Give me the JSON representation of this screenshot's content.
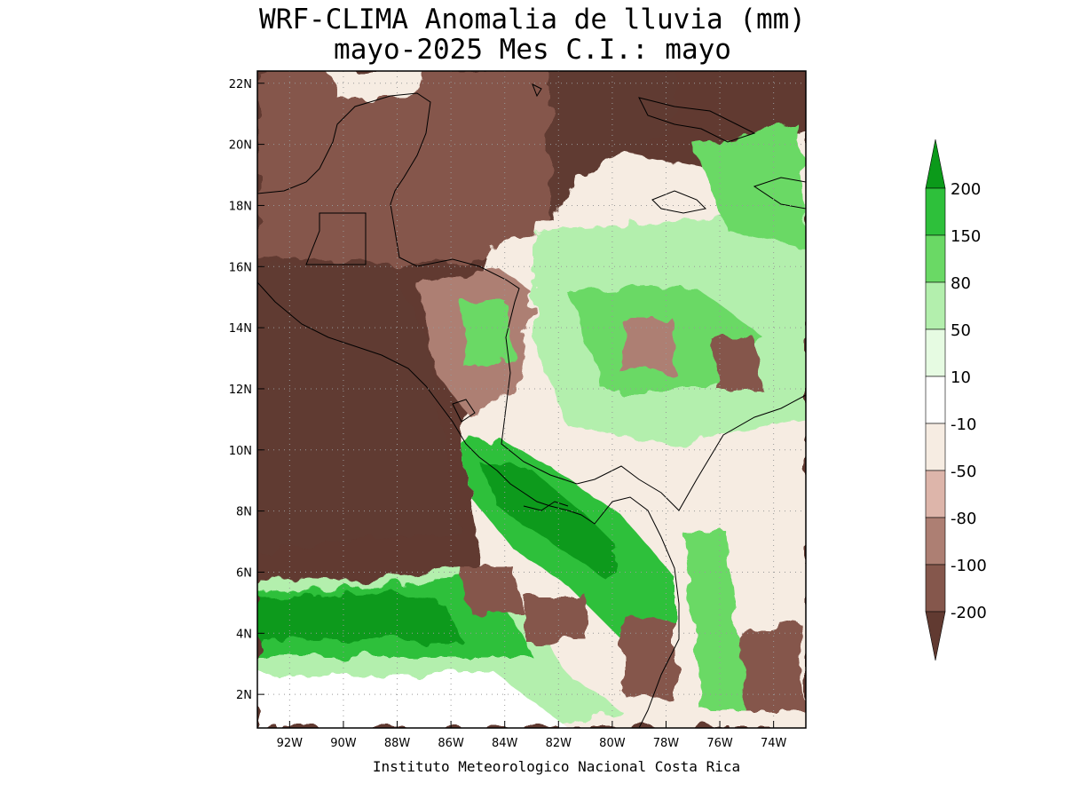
{
  "header": {
    "title_line1": "WRF-CLIMA Anomalia de lluvia (mm)",
    "title_line2": "mayo-2025 Mes C.I.: mayo"
  },
  "map": {
    "lon_range": [
      -93.2,
      -72.8
    ],
    "lat_range": [
      0.9,
      22.4
    ],
    "x_ticks": [
      "92W",
      "90W",
      "88W",
      "86W",
      "84W",
      "82W",
      "80W",
      "78W",
      "76W",
      "74W"
    ],
    "y_ticks": [
      "2N",
      "4N",
      "6N",
      "8N",
      "10N",
      "12N",
      "14N",
      "16N",
      "18N",
      "20N",
      "22N"
    ],
    "grid": "dotted"
  },
  "colorbar": {
    "levels": [
      "200",
      "150",
      "80",
      "50",
      "10",
      "-10",
      "-50",
      "-80",
      "-100",
      "-200"
    ],
    "colors": [
      "#0b9a1a",
      "#2ec03b",
      "#6ad965",
      "#b3efad",
      "#e6fbe2",
      "#ffffff",
      "#f6ece2",
      "#ddb5aa",
      "#ad7f73",
      "#85574c",
      "#613a31"
    ]
  },
  "footer": {
    "credit": "Instituto Meteorologico Nacional Costa Rica"
  }
}
